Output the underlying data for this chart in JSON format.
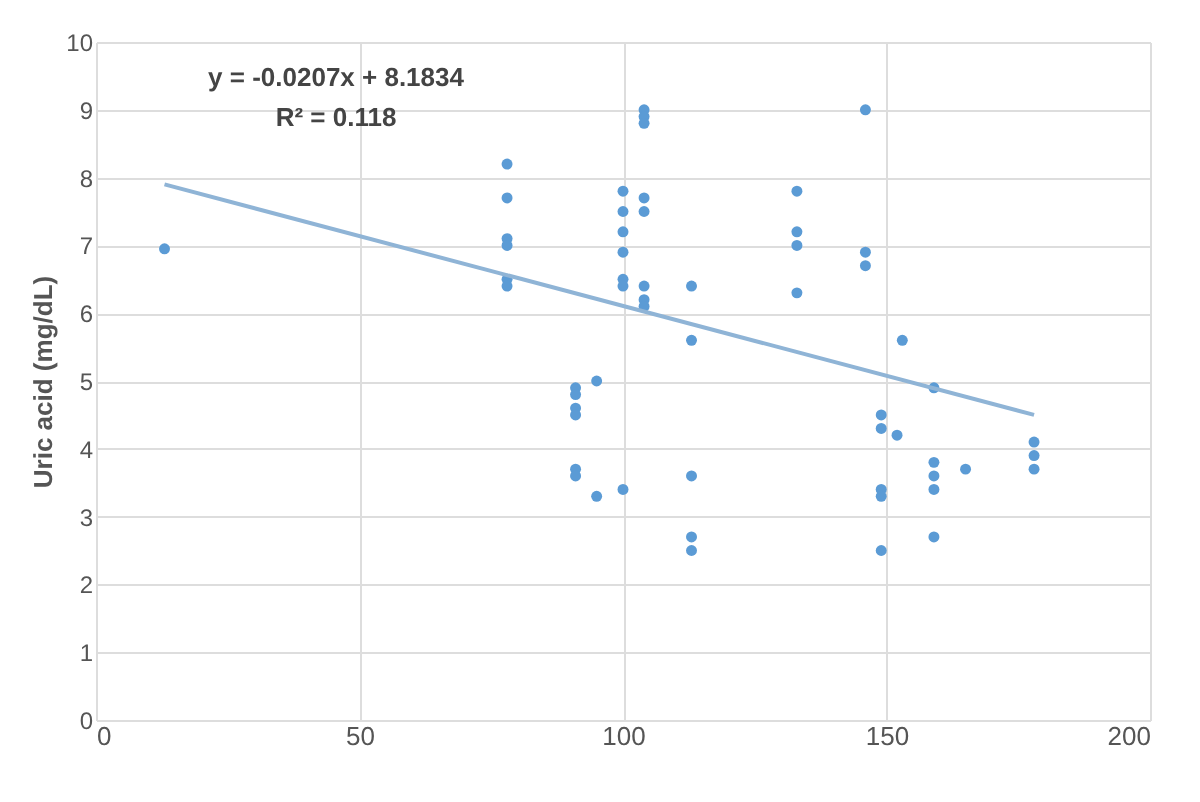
{
  "chart_data": {
    "type": "scatter",
    "ylabel": "Uric acid (mg/dL)",
    "annotations": [
      "y = -0.0207x + 8.1834",
      "R² = 0.118"
    ],
    "series": [
      {
        "color": "#5b9bd5",
        "marker": "circle",
        "x": [
          13,
          78,
          78,
          78,
          78,
          78,
          78,
          91,
          91,
          91,
          91,
          91,
          91,
          95,
          95,
          100,
          100,
          100,
          100,
          100,
          100,
          100,
          104,
          104,
          104,
          104,
          104,
          104,
          104,
          104,
          113,
          113,
          113,
          113,
          113,
          133,
          133,
          133,
          133,
          146,
          146,
          146,
          153,
          149,
          149,
          149,
          149,
          149,
          152,
          159,
          159,
          159,
          159,
          159,
          165,
          178,
          178,
          178
        ],
        "values": [
          6.95,
          8.2,
          7.7,
          7.1,
          7.0,
          6.5,
          6.4,
          4.9,
          4.8,
          4.6,
          4.5,
          3.7,
          3.6,
          5.0,
          3.3,
          3.4,
          7.8,
          7.5,
          7.2,
          6.9,
          6.5,
          6.4,
          9.0,
          8.9,
          8.8,
          7.7,
          7.5,
          6.4,
          6.2,
          6.1,
          6.4,
          5.6,
          3.6,
          2.7,
          2.5,
          7.8,
          7.2,
          7.0,
          6.3,
          9.0,
          6.9,
          6.7,
          5.6,
          4.5,
          4.3,
          3.4,
          3.3,
          2.5,
          4.2,
          4.9,
          3.8,
          3.6,
          3.4,
          2.7,
          3.7,
          4.1,
          3.9,
          3.7
        ]
      },
      {
        "type": "line",
        "color": "#8fb4d6",
        "x": [
          13,
          178
        ],
        "values": [
          7.9,
          4.5
        ]
      }
    ],
    "xlim": [
      0,
      200
    ],
    "xticks": [
      0,
      50,
      100,
      150,
      200
    ],
    "ylim": [
      0,
      10
    ],
    "yticks": [
      0,
      1,
      2,
      3,
      4,
      5,
      6,
      7,
      8,
      9,
      10
    ],
    "grid": true
  }
}
